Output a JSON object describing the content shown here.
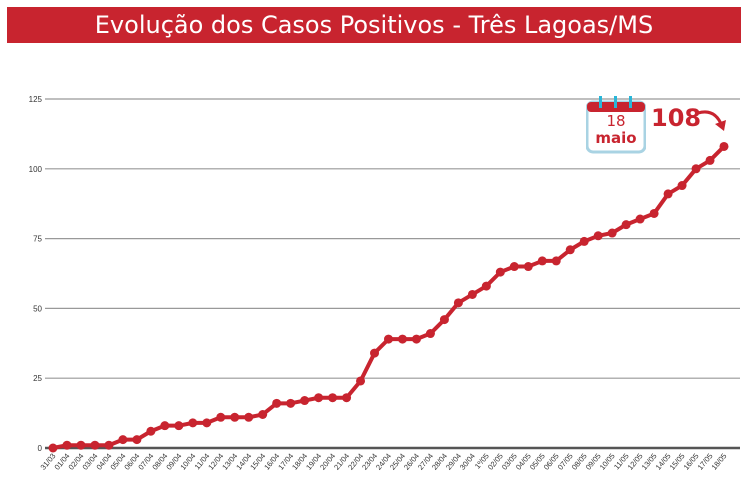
{
  "title": "Evolução dos Casos Positivos - Três Lagoas/MS",
  "callout": {
    "day": "18",
    "month": "maio",
    "value": "108"
  },
  "colors": {
    "line": "#c8242f",
    "banner": "#c8242f",
    "grid": "#999999"
  },
  "chart_data": {
    "type": "line",
    "title": "Evolução dos Casos Positivos - Três Lagoas/MS",
    "xlabel": "",
    "ylabel": "",
    "ylim": [
      0,
      125
    ],
    "yticks": [
      0,
      25,
      50,
      75,
      100,
      125
    ],
    "grid": true,
    "categories": [
      "31/03",
      "01/04",
      "02/04",
      "03/04",
      "04/04",
      "05/04",
      "06/04",
      "07/04",
      "08/04",
      "09/04",
      "10/04",
      "11/04",
      "12/04",
      "13/04",
      "14/04",
      "15/04",
      "16/04",
      "17/04",
      "18/04",
      "19/04",
      "20/04",
      "21/04",
      "22/04",
      "23/04",
      "24/04",
      "25/04",
      "26/04",
      "27/04",
      "28/04",
      "29/04",
      "30/04",
      "1º/05",
      "02/05",
      "03/05",
      "04/05",
      "05/05",
      "06/05",
      "07/05",
      "08/05",
      "09/05",
      "10/05",
      "11/05",
      "12/05",
      "13/05",
      "14/05",
      "15/05",
      "16/05",
      "17/05",
      "18/05"
    ],
    "series": [
      {
        "name": "Casos positivos",
        "values": [
          0,
          1,
          1,
          1,
          1,
          3,
          3,
          6,
          8,
          8,
          9,
          9,
          11,
          11,
          11,
          12,
          16,
          16,
          17,
          18,
          18,
          18,
          24,
          34,
          39,
          39,
          39,
          41,
          46,
          52,
          55,
          58,
          63,
          65,
          65,
          67,
          67,
          71,
          74,
          76,
          77,
          80,
          82,
          84,
          91,
          94,
          100,
          103,
          108
        ]
      }
    ]
  }
}
